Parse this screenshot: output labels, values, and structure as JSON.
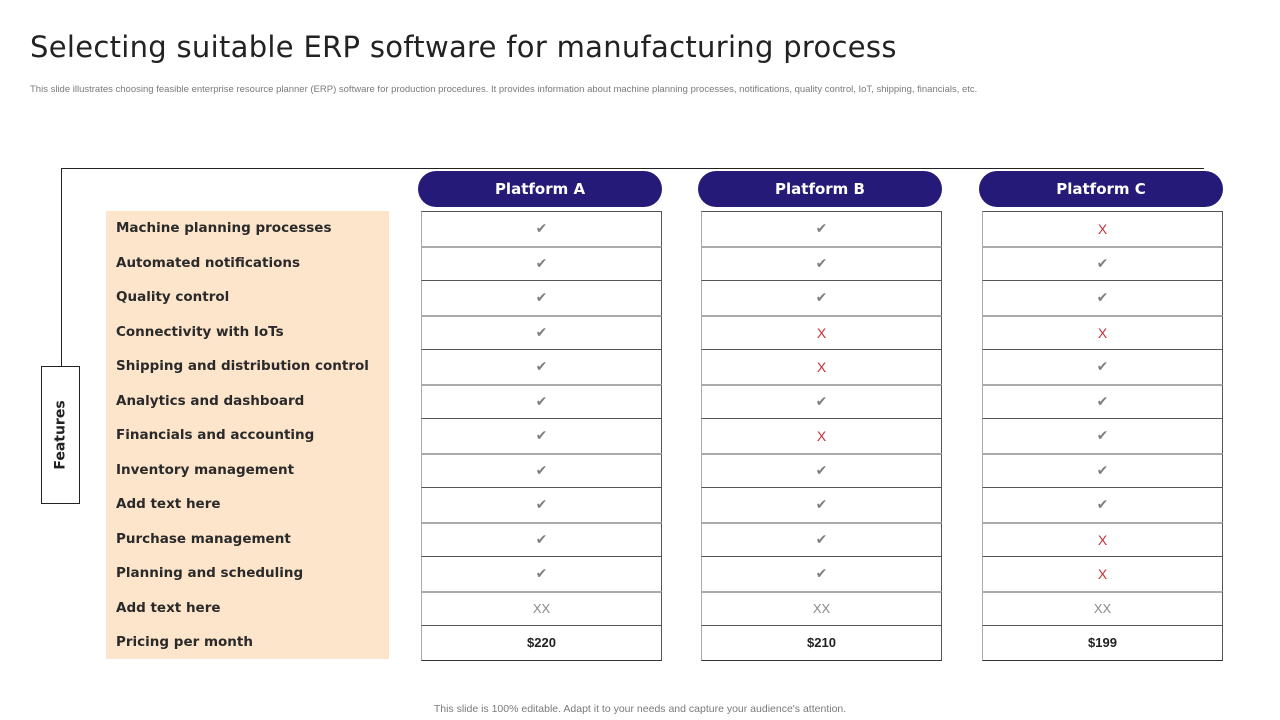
{
  "slide": {
    "title": "Selecting suitable ERP software for manufacturing process",
    "subtitle": "This slide illustrates choosing feasible enterprise resource planner (ERP) software for production procedures. It provides information about machine planning processes, notifications, quality control, IoT, shipping, financials, etc.",
    "footer": "This slide is 100% editable. Adapt it to your needs and capture your audience's attention."
  },
  "features_label": "Features",
  "features": [
    "Machine planning processes",
    "Automated notifications",
    "Quality control",
    "Connectivity with IoTs",
    "Shipping and distribution control",
    "Analytics and dashboard",
    "Financials and accounting",
    "Inventory management",
    "Add text here",
    "Purchase management",
    "Planning and scheduling",
    "Add text here",
    "Pricing per month"
  ],
  "symbols": {
    "check": "✔",
    "cross": "X"
  },
  "colors": {
    "header": "#251a78",
    "panel": "#fde5cb",
    "cross": "#c0323a",
    "check": "#7f7f7f"
  },
  "platforms": [
    {
      "name": "Platform A",
      "values": [
        "check",
        "check",
        "check",
        "check",
        "check",
        "check",
        "check",
        "check",
        "check",
        "check",
        "check",
        "XX",
        "$220"
      ]
    },
    {
      "name": "Platform B",
      "values": [
        "check",
        "check",
        "check",
        "cross",
        "cross",
        "check",
        "cross",
        "check",
        "check",
        "check",
        "check",
        "XX",
        "$210"
      ]
    },
    {
      "name": "Platform C",
      "values": [
        "cross",
        "check",
        "check",
        "cross",
        "check",
        "check",
        "check",
        "check",
        "check",
        "cross",
        "cross",
        "XX",
        "$199"
      ]
    }
  ]
}
